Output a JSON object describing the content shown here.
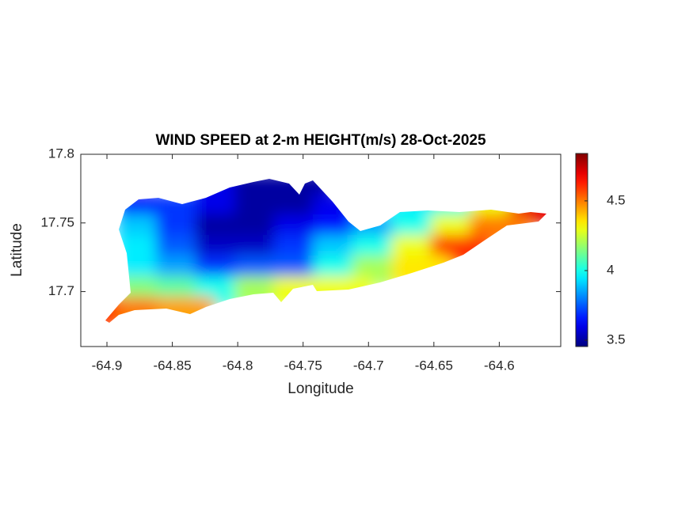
{
  "chart_data": {
    "type": "contour",
    "title": "WIND SPEED at 2-m HEIGHT(m/s) 28-Oct-2025",
    "x_label": "Longitude",
    "y_label": "Latitude",
    "xlim": [
      -64.92,
      -64.553
    ],
    "ylim": [
      17.66,
      17.8
    ],
    "xticks": [
      -64.9,
      -64.85,
      -64.8,
      -64.75,
      -64.7,
      -64.65,
      -64.6
    ],
    "yticks": [
      17.7,
      17.75,
      17.8
    ],
    "colormap": "jet",
    "x": [
      -64.9,
      -64.87,
      -64.84,
      -64.81,
      -64.78,
      -64.75,
      -64.72,
      -64.69,
      -64.66,
      -64.63,
      -64.6,
      -64.57
    ],
    "y": [
      17.775,
      17.76,
      17.745,
      17.73,
      17.715,
      17.7,
      17.685
    ],
    "z": [
      [
        null,
        null,
        null,
        3.6,
        3.5,
        3.5,
        null,
        null,
        null,
        null,
        null,
        null
      ],
      [
        null,
        3.65,
        3.7,
        3.6,
        3.5,
        3.5,
        3.6,
        null,
        3.95,
        4.0,
        4.3,
        4.7
      ],
      [
        null,
        3.9,
        3.7,
        3.5,
        3.5,
        3.6,
        3.65,
        3.85,
        4.0,
        4.3,
        4.5,
        null
      ],
      [
        null,
        3.95,
        3.75,
        3.55,
        3.55,
        3.7,
        3.9,
        4.0,
        4.3,
        4.6,
        null,
        null
      ],
      [
        null,
        3.95,
        3.85,
        3.7,
        3.75,
        3.75,
        4.0,
        4.2,
        4.35,
        null,
        null,
        null
      ],
      [
        null,
        4.15,
        4.1,
        4.0,
        4.2,
        4.3,
        4.3,
        null,
        null,
        null,
        null,
        null
      ],
      [
        4.6,
        4.5,
        4.45,
        null,
        null,
        null,
        null,
        null,
        null,
        null,
        null,
        null
      ]
    ],
    "colorbar": {
      "lim": [
        3.455,
        4.84
      ],
      "ticks": [
        3.5,
        4,
        4.5
      ]
    }
  }
}
